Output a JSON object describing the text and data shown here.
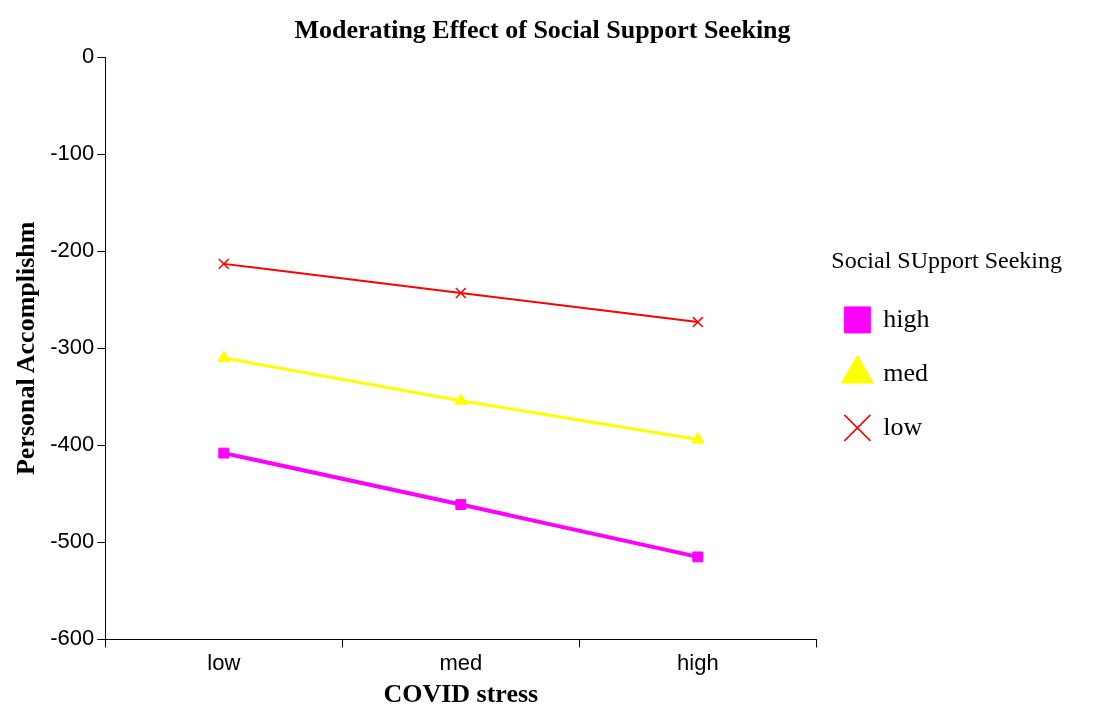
{
  "chart_data": {
    "type": "line",
    "title": "Moderating Effect of Social Support Seeking",
    "xlabel": "COVID stress",
    "ylabel": "Personal Accomplishm",
    "legend_title": "Social SUpport Seeking",
    "categories": [
      "low",
      "med",
      "high"
    ],
    "series": [
      {
        "name": "high",
        "color": "#ff00ff",
        "marker": "square",
        "values": [
          -408,
          -461,
          -515
        ]
      },
      {
        "name": "med",
        "color": "#ffff00",
        "marker": "triangle",
        "values": [
          -310,
          -354,
          -394
        ]
      },
      {
        "name": "low",
        "color": "#ff0000",
        "marker": "cross",
        "values": [
          -213,
          -243,
          -273
        ]
      }
    ],
    "ylim": [
      -600,
      0
    ],
    "yticks": [
      -600,
      -500,
      -400,
      -300,
      -200,
      -100,
      0
    ],
    "grid": false,
    "legend": "right"
  }
}
